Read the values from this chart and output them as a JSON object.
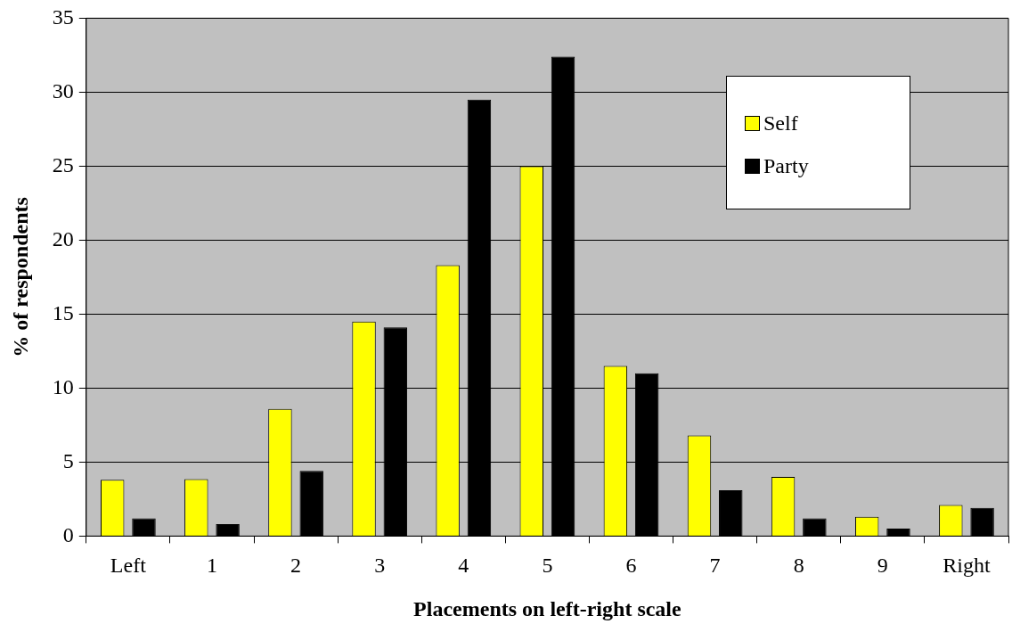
{
  "chart_data": {
    "type": "bar",
    "xlabel": "Placements on left-right scale",
    "ylabel": "% of respondents",
    "categories": [
      "Left",
      "1",
      "2",
      "3",
      "4",
      "5",
      "6",
      "7",
      "8",
      "9",
      "Right"
    ],
    "series": [
      {
        "name": "Self",
        "color": "#ffff00",
        "values": [
          3.8,
          3.85,
          8.6,
          14.5,
          18.3,
          25.0,
          11.5,
          6.8,
          4.0,
          1.3,
          2.1
        ]
      },
      {
        "name": "Party",
        "color": "#000000",
        "values": [
          1.2,
          0.8,
          4.4,
          14.1,
          29.5,
          32.4,
          11.0,
          3.1,
          1.2,
          0.5,
          1.9
        ]
      }
    ],
    "ylim": [
      0,
      35
    ],
    "yticks": [
      0,
      5,
      10,
      15,
      20,
      25,
      30,
      35
    ],
    "grid": "y",
    "legend": "top right"
  }
}
